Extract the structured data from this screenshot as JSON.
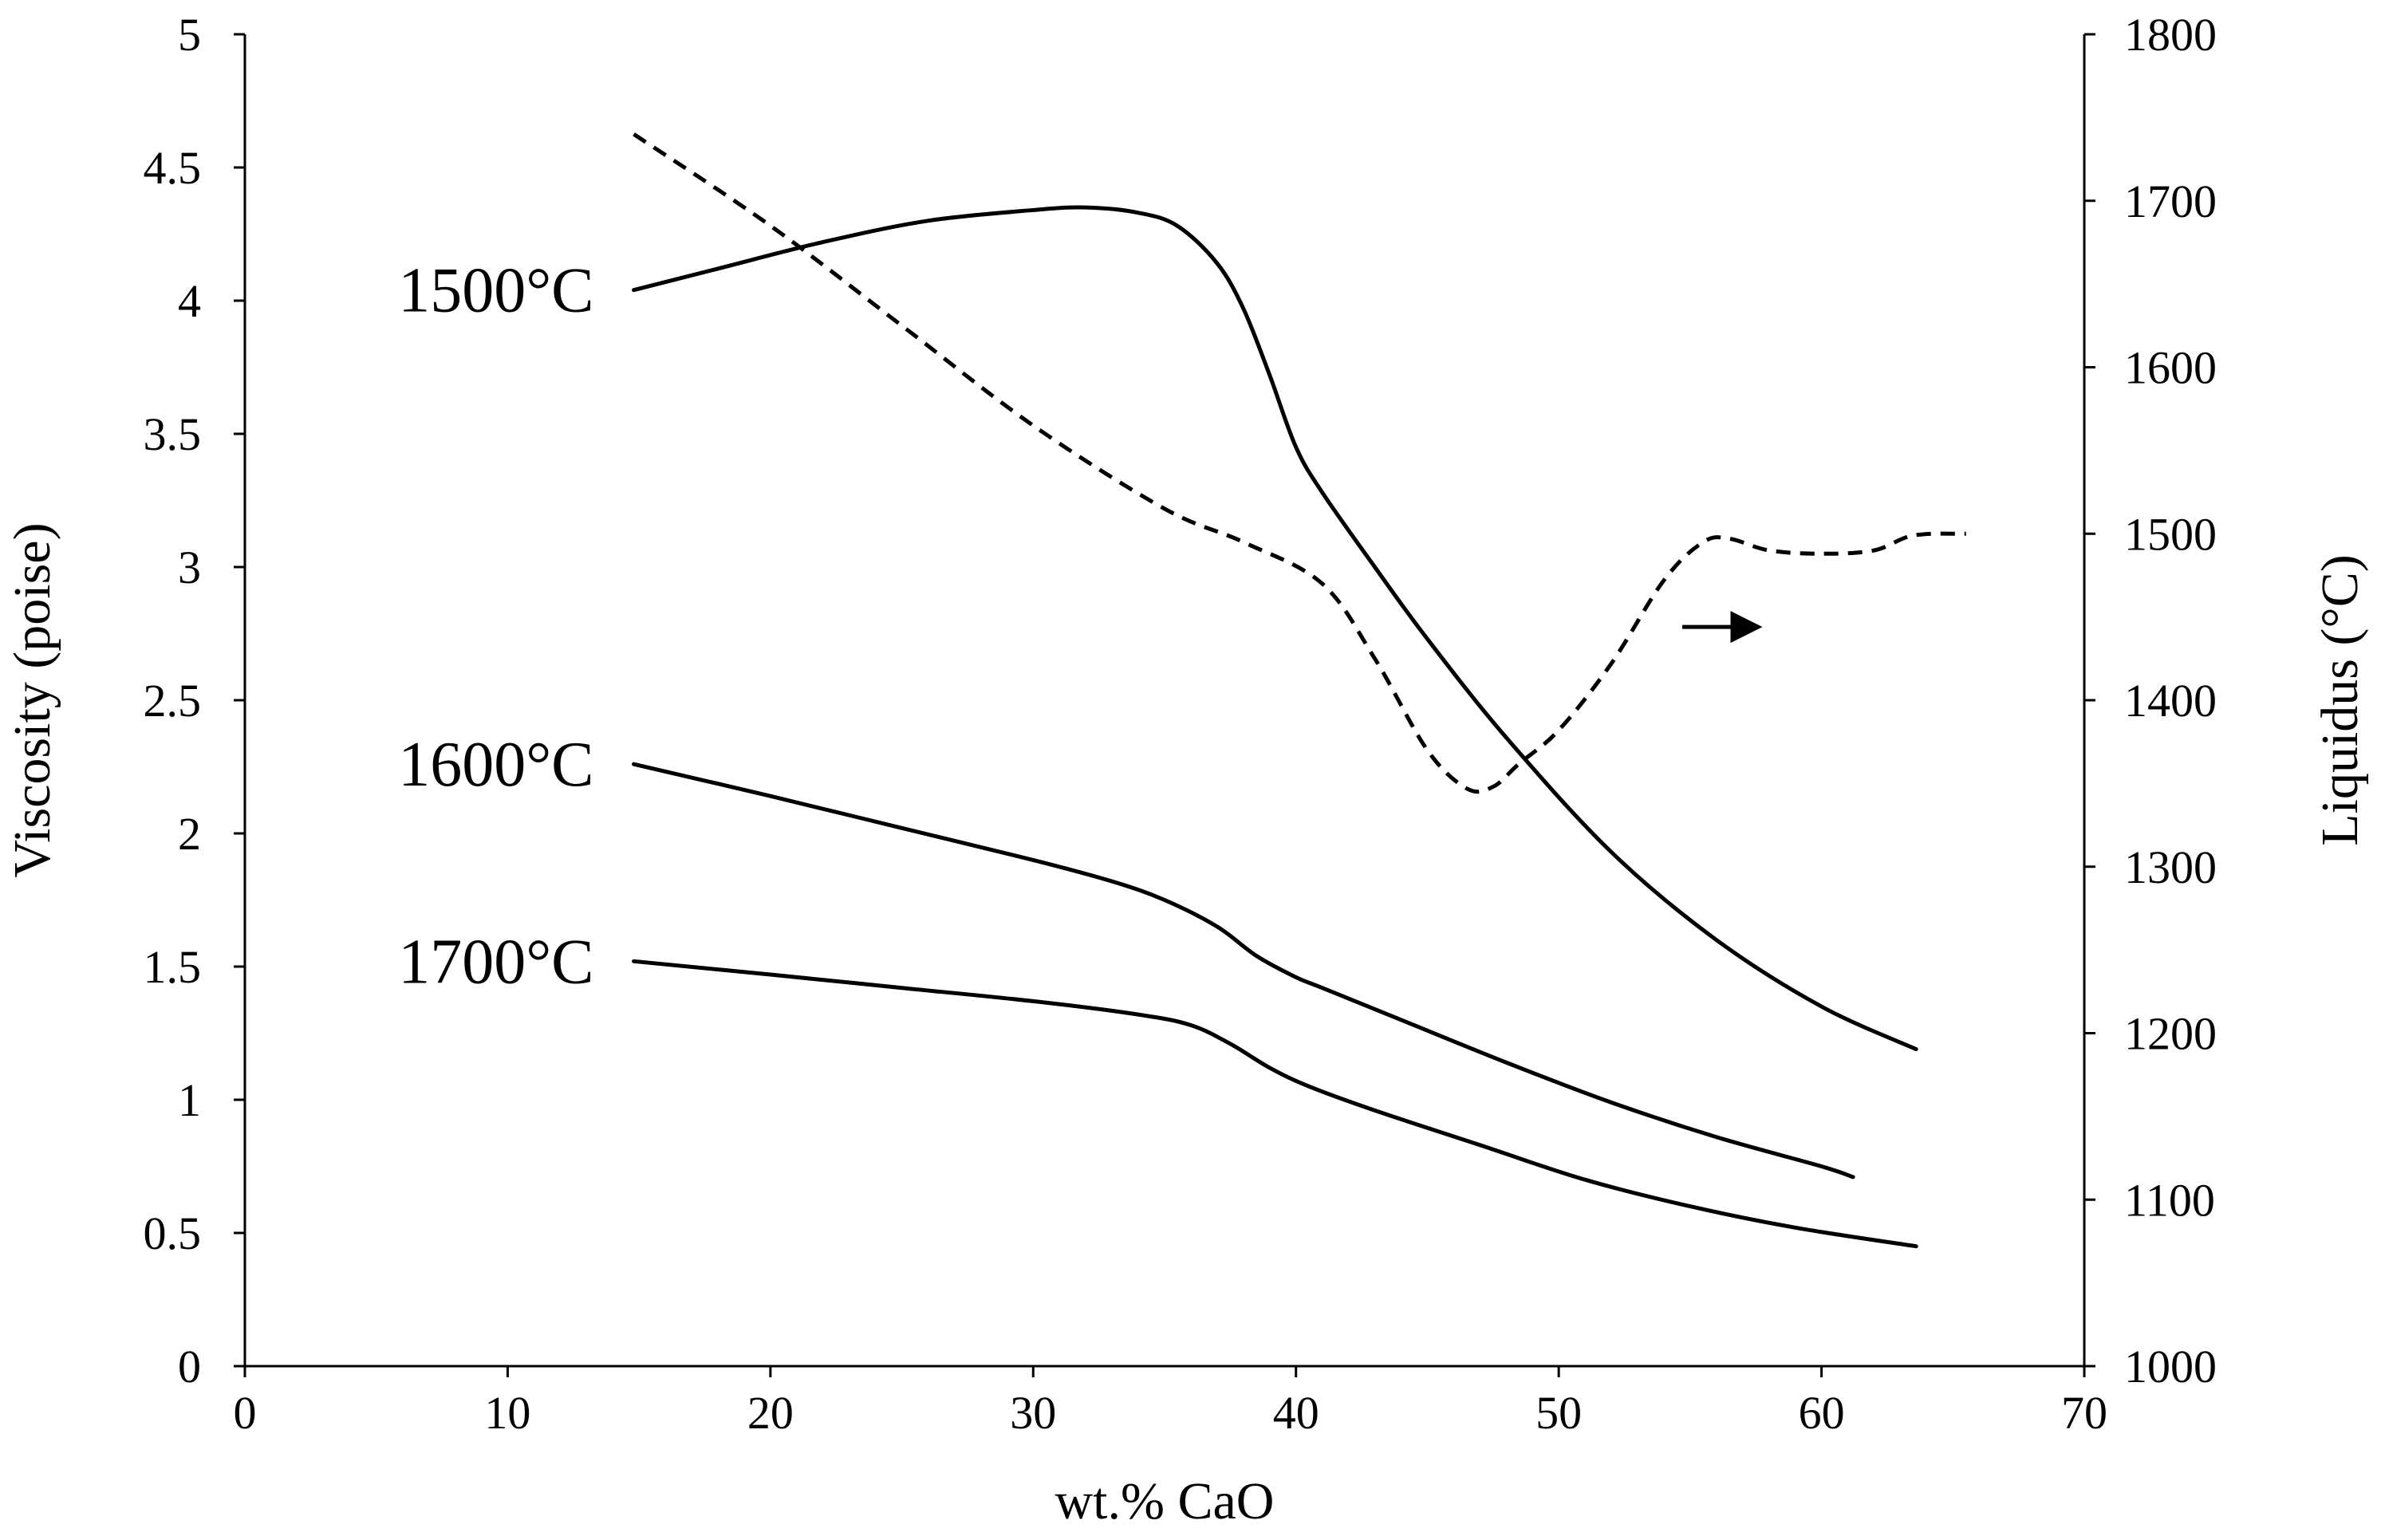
{
  "chart_data": {
    "type": "line",
    "title": "",
    "xlabel": "wt.% CaO",
    "ylabel": "Viscosity (poise)",
    "y2label": "Liquidus (°C)",
    "xlim": [
      0,
      70
    ],
    "ylim": [
      0,
      5
    ],
    "y2lim": [
      1000,
      1800
    ],
    "x_ticks": [
      "0",
      "10",
      "20",
      "30",
      "40",
      "50",
      "60",
      "70"
    ],
    "y_ticks": [
      "0",
      "0.5",
      "1",
      "1.5",
      "2",
      "2.5",
      "3",
      "3.5",
      "4",
      "4.5",
      "5"
    ],
    "y2_ticks": [
      "1000",
      "1100",
      "1200",
      "1300",
      "1400",
      "1500",
      "1600",
      "1700",
      "1800"
    ],
    "grid": false,
    "series": [
      {
        "name": "1500°C",
        "axis": "left",
        "style": "solid",
        "label": "1500°C",
        "x": [
          14.8,
          18,
          22,
          26,
          30,
          32,
          34,
          35.5,
          37,
          38,
          39,
          40,
          41,
          43,
          45,
          48,
          52,
          56,
          60,
          63.6
        ],
        "values": [
          4.04,
          4.12,
          4.22,
          4.3,
          4.34,
          4.35,
          4.33,
          4.28,
          4.14,
          3.97,
          3.72,
          3.45,
          3.28,
          3.0,
          2.73,
          2.36,
          1.93,
          1.6,
          1.35,
          1.19
        ]
      },
      {
        "name": "1600°C",
        "axis": "left",
        "style": "solid",
        "label": "1600°C",
        "x": [
          14.8,
          20,
          25,
          30,
          33,
          35,
          37,
          38.5,
          40,
          41,
          44,
          48,
          52,
          56,
          60,
          61.2
        ],
        "values": [
          2.26,
          2.14,
          2.02,
          1.9,
          1.82,
          1.75,
          1.65,
          1.54,
          1.46,
          1.42,
          1.3,
          1.14,
          0.99,
          0.86,
          0.75,
          0.71
        ]
      },
      {
        "name": "1700°C",
        "axis": "left",
        "style": "solid",
        "label": "1700°C",
        "x": [
          14.8,
          20,
          25,
          30,
          34,
          36,
          37.5,
          39,
          40.5,
          43,
          47,
          51,
          55,
          59,
          63.6
        ],
        "values": [
          1.52,
          1.47,
          1.42,
          1.37,
          1.32,
          1.28,
          1.21,
          1.12,
          1.05,
          0.96,
          0.83,
          0.7,
          0.6,
          0.52,
          0.45
        ]
      },
      {
        "name": "Liquidus",
        "axis": "right",
        "style": "dashed",
        "x": [
          14.8,
          20,
          25,
          30,
          35,
          38,
          41,
          43,
          45,
          46.5,
          47.5,
          48.5,
          50,
          52,
          54,
          55.5,
          56.5,
          58,
          60,
          62,
          63.5,
          65.5
        ],
        "values": [
          1740,
          1685,
          1625,
          1565,
          1515,
          1495,
          1470,
          1425,
          1370,
          1347,
          1348,
          1362,
          1382,
          1422,
          1472,
          1495,
          1497,
          1490,
          1488,
          1490,
          1499,
          1500
        ]
      }
    ],
    "annotations": [
      {
        "type": "arrow",
        "direction": "right",
        "axis": "right",
        "x_from": 54.7,
        "x_to": 57.6,
        "y": 1444,
        "meaning": "dashed curve uses right axis"
      }
    ]
  }
}
